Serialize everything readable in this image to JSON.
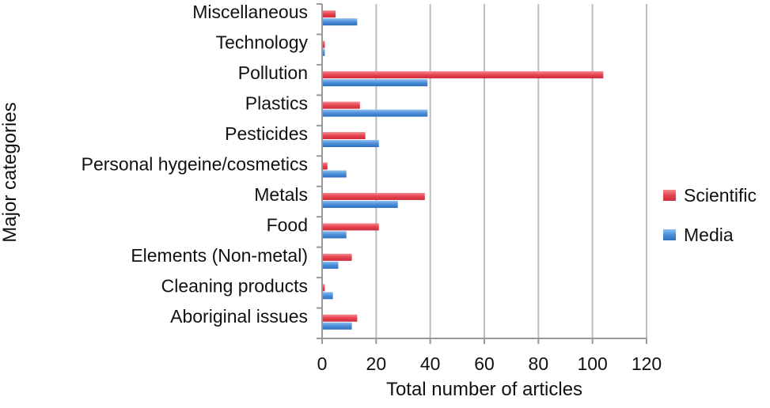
{
  "chart_data": {
    "type": "bar",
    "orientation": "horizontal",
    "title": "",
    "xlabel": "Total number of articles",
    "ylabel": "Major categories",
    "xlim": [
      0,
      120
    ],
    "xticks": [
      0,
      20,
      40,
      60,
      80,
      100,
      120
    ],
    "grid": "vertical",
    "legend": {
      "position": "right"
    },
    "categories": [
      "Miscellaneous",
      "Technology",
      "Pollution",
      "Plastics",
      "Pesticides",
      "Personal hygeine/cosmetics",
      "Metals",
      "Food",
      "Elements (Non-metal)",
      "Cleaning products",
      "Aboriginal issues"
    ],
    "series": [
      {
        "name": "Scientific",
        "color": "#e8424f",
        "values": [
          5,
          1,
          104,
          14,
          16,
          2,
          38,
          21,
          11,
          1,
          13
        ]
      },
      {
        "name": "Media",
        "color": "#4a8ed8",
        "values": [
          13,
          1,
          39,
          39,
          21,
          9,
          28,
          9,
          6,
          4,
          11
        ]
      }
    ]
  }
}
